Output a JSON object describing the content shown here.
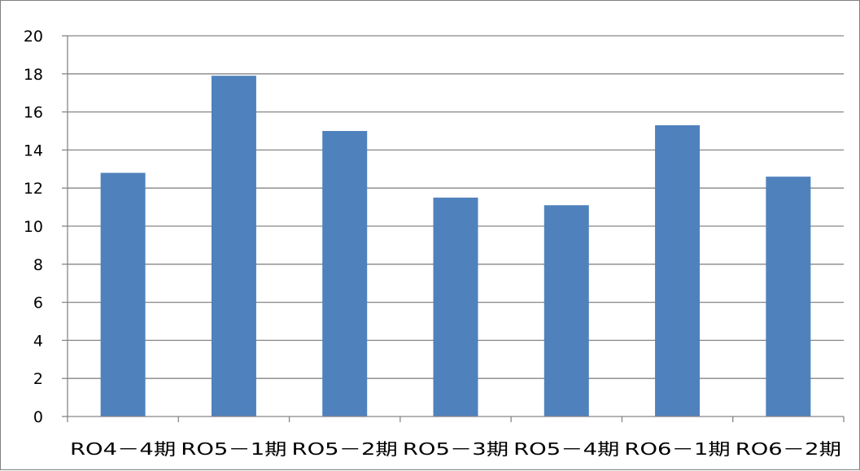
{
  "chart_data": {
    "type": "bar",
    "title": "",
    "xlabel": "",
    "ylabel": "",
    "categories": [
      "RO4－4期",
      "RO5－1期",
      "RO5－2期",
      "RO5－3期",
      "RO5－4期",
      "RO6－1期",
      "RO6－2期"
    ],
    "series": [
      {
        "values": [
          12.8,
          17.9,
          15.0,
          11.5,
          11.1,
          15.3,
          12.6
        ],
        "color": "#4F81BD"
      }
    ],
    "ylim": [
      0,
      20
    ],
    "yticks": [
      0,
      2,
      4,
      6,
      8,
      10,
      12,
      14,
      16,
      18,
      20
    ],
    "grid": true,
    "legend": "none",
    "gridline_color": "#868686",
    "axis_color": "#868686"
  }
}
